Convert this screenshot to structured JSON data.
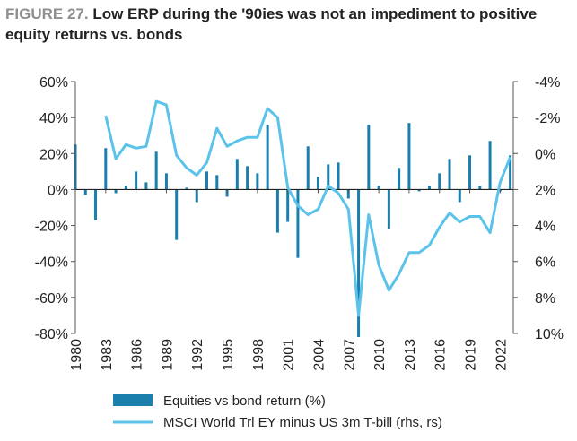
{
  "figure_label": "FIGURE 27.",
  "figure_title": "Low ERP during the '90ies was not an impediment to positive equity returns vs. bonds",
  "colors": {
    "bars": "#1a7fad",
    "line": "#5bc3ea",
    "axis": "#555555",
    "zero_line": "#222222"
  },
  "chart_data": {
    "type": "bar+line",
    "title": "Low ERP during the '90ies was not an impediment to positive equity returns vs. bonds",
    "x": [
      1980,
      1981,
      1982,
      1983,
      1984,
      1985,
      1986,
      1987,
      1988,
      1989,
      1990,
      1991,
      1992,
      1993,
      1994,
      1995,
      1996,
      1997,
      1998,
      1999,
      2000,
      2001,
      2002,
      2003,
      2004,
      2005,
      2006,
      2007,
      2008,
      2009,
      2010,
      2011,
      2012,
      2013,
      2014,
      2015,
      2016,
      2017,
      2018,
      2019,
      2020,
      2021,
      2022,
      2023
    ],
    "x_tick_labels": [
      "1980",
      "1983",
      "1986",
      "1989",
      "1992",
      "1995",
      "1998",
      "2001",
      "2004",
      "2007",
      "2010",
      "2013",
      "2016",
      "2019",
      "2022"
    ],
    "left_axis": {
      "ylim": [
        -80,
        60
      ],
      "ticks": [
        60,
        40,
        20,
        0,
        -20,
        -40,
        -60,
        -80
      ],
      "tick_labels": [
        "60%",
        "40%",
        "20%",
        "0%",
        "-20%",
        "-40%",
        "-60%",
        "-80%"
      ]
    },
    "right_axis": {
      "inverted": true,
      "ylim": [
        -4,
        10
      ],
      "ticks": [
        -4,
        -2,
        0,
        2,
        4,
        6,
        8,
        10
      ],
      "tick_labels": [
        "-4%",
        "-2%",
        "0%",
        "2%",
        "4%",
        "6%",
        "8%",
        "10%"
      ]
    },
    "series": [
      {
        "name": "Equities vs bond return (%)",
        "type": "bar",
        "axis": "left",
        "values": [
          25,
          -3,
          -17,
          23,
          -2,
          2,
          10,
          4,
          21,
          9,
          -28,
          1,
          -7,
          10,
          8,
          -4,
          17,
          13,
          9,
          36,
          -24,
          -18,
          -38,
          24,
          7,
          14,
          15,
          -5,
          -82,
          36,
          2,
          -22,
          12,
          37,
          -1,
          2,
          9,
          17,
          -7,
          19,
          2,
          27,
          -1,
          19
        ]
      },
      {
        "name": "MSCI World Trl EY minus US 3m T-bill (rhs, rs)",
        "type": "line",
        "axis": "right",
        "x": [
          1983,
          1984,
          1985,
          1986,
          1987,
          1988,
          1989,
          1990,
          1991,
          1992,
          1993,
          1994,
          1995,
          1996,
          1997,
          1998,
          1999,
          2000,
          2001,
          2002,
          2003,
          2004,
          2005,
          2006,
          2007,
          2008,
          2009,
          2010,
          2011,
          2012,
          2013,
          2014,
          2015,
          2016,
          2017,
          2018,
          2019,
          2020,
          2021,
          2022,
          2023
        ],
        "values": [
          -2.1,
          0.3,
          -0.5,
          -0.3,
          -0.4,
          -2.9,
          -2.7,
          0.1,
          0.8,
          1.2,
          0.5,
          -1.4,
          -0.4,
          -0.7,
          -0.9,
          -0.9,
          -2.5,
          -2.0,
          1.9,
          2.9,
          3.4,
          3.1,
          1.8,
          2.2,
          3.1,
          9.0,
          3.4,
          6.2,
          7.6,
          6.7,
          5.5,
          5.5,
          5.1,
          4.1,
          3.3,
          3.8,
          3.5,
          3.5,
          4.4,
          1.6,
          0.2
        ]
      }
    ]
  },
  "legend": {
    "bar_label": "Equities vs bond return (%)",
    "line_label": "MSCI World Trl EY minus US 3m T-bill (rhs, rs)"
  }
}
